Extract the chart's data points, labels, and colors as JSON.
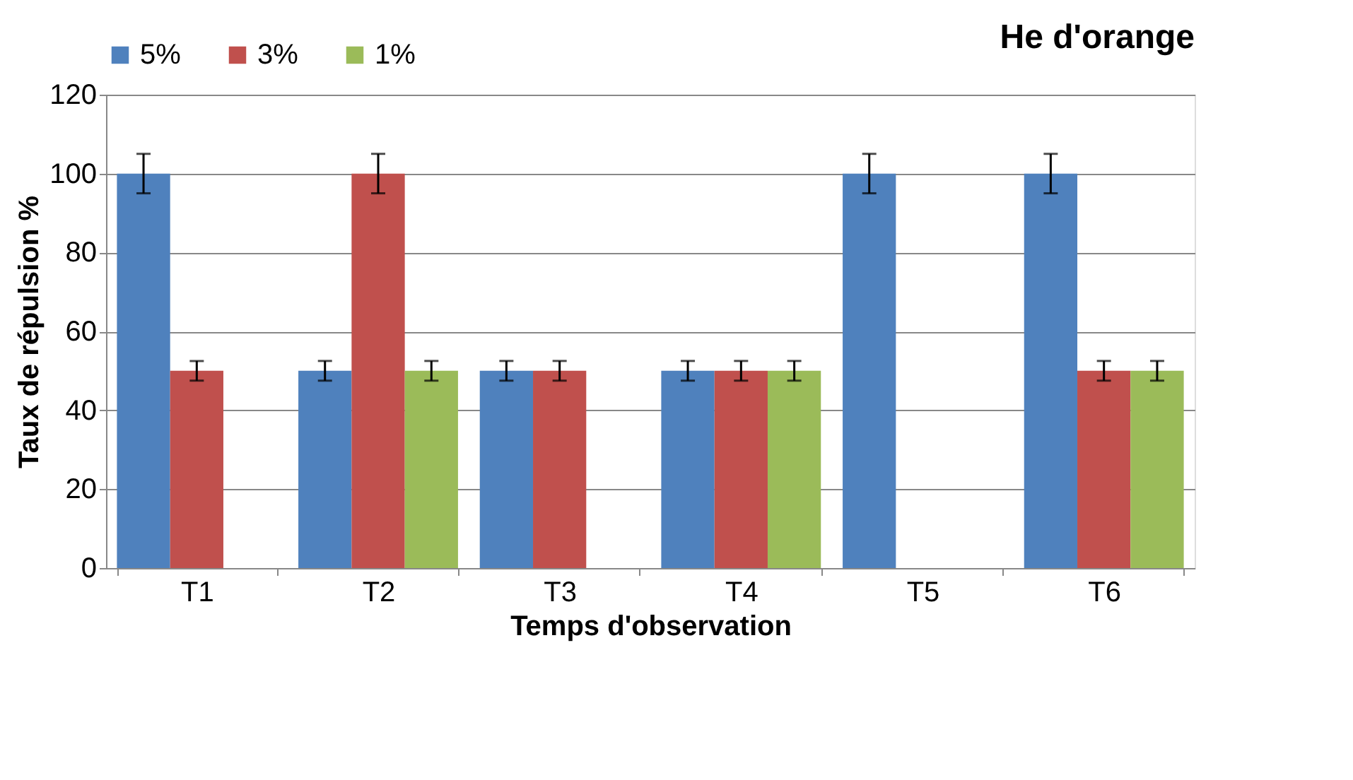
{
  "chart_data": {
    "type": "bar",
    "title": "He d'orange",
    "xlabel": "Temps d'observation",
    "ylabel": "Taux de répulsion %",
    "categories": [
      "T1",
      "T2",
      "T3",
      "T4",
      "T5",
      "T6"
    ],
    "series": [
      {
        "name": "5%",
        "color": "#4f81bd",
        "values": [
          100,
          50,
          50,
          50,
          100,
          100
        ],
        "errors": [
          5,
          2.5,
          2.5,
          2.5,
          5,
          5
        ]
      },
      {
        "name": "3%",
        "color": "#c0504d",
        "values": [
          50,
          100,
          50,
          50,
          0,
          50
        ],
        "errors": [
          2.5,
          5,
          2.5,
          2.5,
          null,
          2.5
        ]
      },
      {
        "name": "1%",
        "color": "#9bbb59",
        "values": [
          0,
          50,
          0,
          50,
          0,
          50
        ],
        "errors": [
          null,
          2.5,
          null,
          2.5,
          null,
          2.5
        ]
      }
    ],
    "ylim": [
      0,
      120
    ],
    "yticks": [
      0,
      20,
      40,
      60,
      80,
      100,
      120
    ],
    "grid": "y",
    "legend": "top"
  }
}
